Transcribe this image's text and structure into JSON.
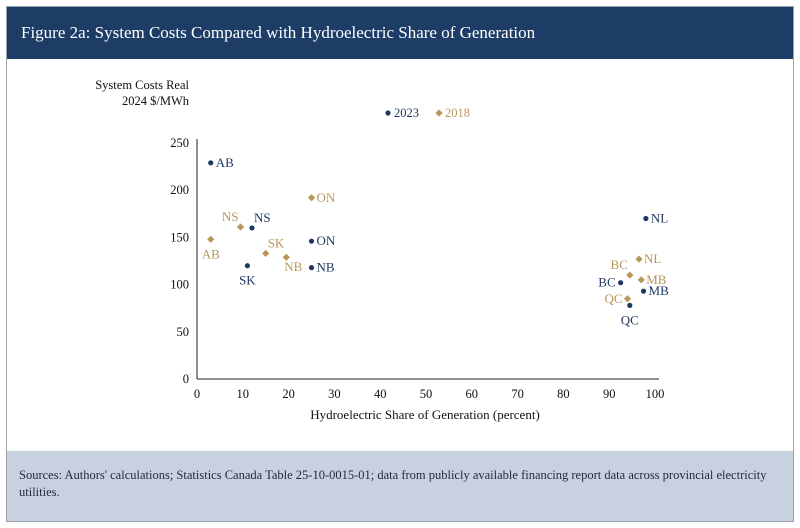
{
  "header": {
    "title": "Figure 2a: System Costs Compared with Hydroelectric Share of Generation"
  },
  "footer": {
    "source": "Sources: Authors' calculations; Statistics Canada Table 25-10-0015-01; data from publicly available financing report data across provincial electricity utilities."
  },
  "colors": {
    "header_bg": "#1d3d67",
    "footer_bg": "#c8d1e0",
    "s2023": "#1f3864",
    "s2018": "#b8965a"
  },
  "chart_data": {
    "type": "scatter",
    "ylabel_line1": "System Costs Real",
    "ylabel_line2": "2024 $/MWh",
    "xlabel": "Hydroelectric Share of Generation (percent)",
    "xlim": [
      0,
      100
    ],
    "ylim": [
      0,
      250
    ],
    "xticks": [
      0,
      10,
      20,
      30,
      40,
      50,
      60,
      70,
      80,
      90,
      100
    ],
    "yticks": [
      0,
      50,
      100,
      150,
      200,
      250
    ],
    "grid": false,
    "legend": "top-center",
    "series": [
      {
        "name": "2023",
        "color": "#1f3864",
        "marker": "circle",
        "points": [
          {
            "label": "AB",
            "x": 3,
            "y": 229,
            "pos": "right"
          },
          {
            "label": "NS",
            "x": 12,
            "y": 160,
            "pos": "top-right"
          },
          {
            "label": "SK",
            "x": 11,
            "y": 120,
            "pos": "below"
          },
          {
            "label": "ON",
            "x": 25,
            "y": 146,
            "pos": "right"
          },
          {
            "label": "NB",
            "x": 25,
            "y": 118,
            "pos": "right"
          },
          {
            "label": "NL",
            "x": 98,
            "y": 170,
            "pos": "right"
          },
          {
            "label": "BC",
            "x": 92.5,
            "y": 102,
            "pos": "left"
          },
          {
            "label": "MB",
            "x": 97.5,
            "y": 93,
            "pos": "right"
          },
          {
            "label": "QC",
            "x": 94.5,
            "y": 78,
            "pos": "below"
          }
        ]
      },
      {
        "name": "2018",
        "color": "#b8965a",
        "marker": "diamond",
        "points": [
          {
            "label": "AB",
            "x": 3,
            "y": 148,
            "pos": "below"
          },
          {
            "label": "NS",
            "x": 9.5,
            "y": 161,
            "pos": "top-left"
          },
          {
            "label": "ON",
            "x": 25,
            "y": 192,
            "pos": "right"
          },
          {
            "label": "SK",
            "x": 15,
            "y": 133,
            "pos": "top-right"
          },
          {
            "label": "NB",
            "x": 19.5,
            "y": 129,
            "pos": "below-right"
          },
          {
            "label": "NL",
            "x": 96.5,
            "y": 127,
            "pos": "right"
          },
          {
            "label": "BC",
            "x": 94.5,
            "y": 110,
            "pos": "top-left"
          },
          {
            "label": "MB",
            "x": 97,
            "y": 105,
            "pos": "right"
          },
          {
            "label": "QC",
            "x": 94,
            "y": 85,
            "pos": "left"
          }
        ]
      }
    ]
  }
}
